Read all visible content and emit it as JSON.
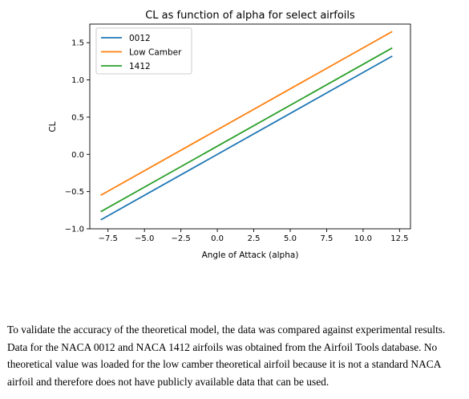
{
  "chart_data": {
    "type": "line",
    "title": "CL as function of alpha for select airfoils",
    "xlabel": "Angle of Attack (alpha)",
    "ylabel": "CL",
    "xlim": [
      -8.75,
      13.25
    ],
    "ylim": [
      -1.0,
      1.75
    ],
    "xticks": [
      -7.5,
      -5.0,
      -2.5,
      0.0,
      2.5,
      5.0,
      7.5,
      10.0,
      12.5
    ],
    "xtick_labels": [
      "−7.5",
      "−5.0",
      "−2.5",
      "0.0",
      "2.5",
      "5.0",
      "7.5",
      "10.0",
      "12.5"
    ],
    "yticks": [
      -1.0,
      -0.5,
      0.0,
      0.5,
      1.0,
      1.5
    ],
    "ytick_labels": [
      "−1.0",
      "−0.5",
      "0.0",
      "0.5",
      "1.0",
      "1.5"
    ],
    "grid": false,
    "legend_position": "top-left",
    "series": [
      {
        "name": "0012",
        "color": "#1f77b4",
        "x": [
          -8,
          12
        ],
        "y": [
          -0.88,
          1.32
        ]
      },
      {
        "name": "Low Camber",
        "color": "#ff7f0e",
        "x": [
          -8,
          12
        ],
        "y": [
          -0.55,
          1.65
        ]
      },
      {
        "name": "1412",
        "color": "#2ca02c",
        "x": [
          -8,
          12
        ],
        "y": [
          -0.77,
          1.43
        ]
      }
    ]
  },
  "paragraph": "To validate the accuracy of the theoretical model, the data was compared against experimental results. Data for the NACA 0012 and NACA 1412 airfoils was obtained from the Airfoil Tools database. No theoretical value was loaded for the low camber theoretical airfoil because it is not a standard NACA airfoil and therefore does not have publicly available data that can be used."
}
